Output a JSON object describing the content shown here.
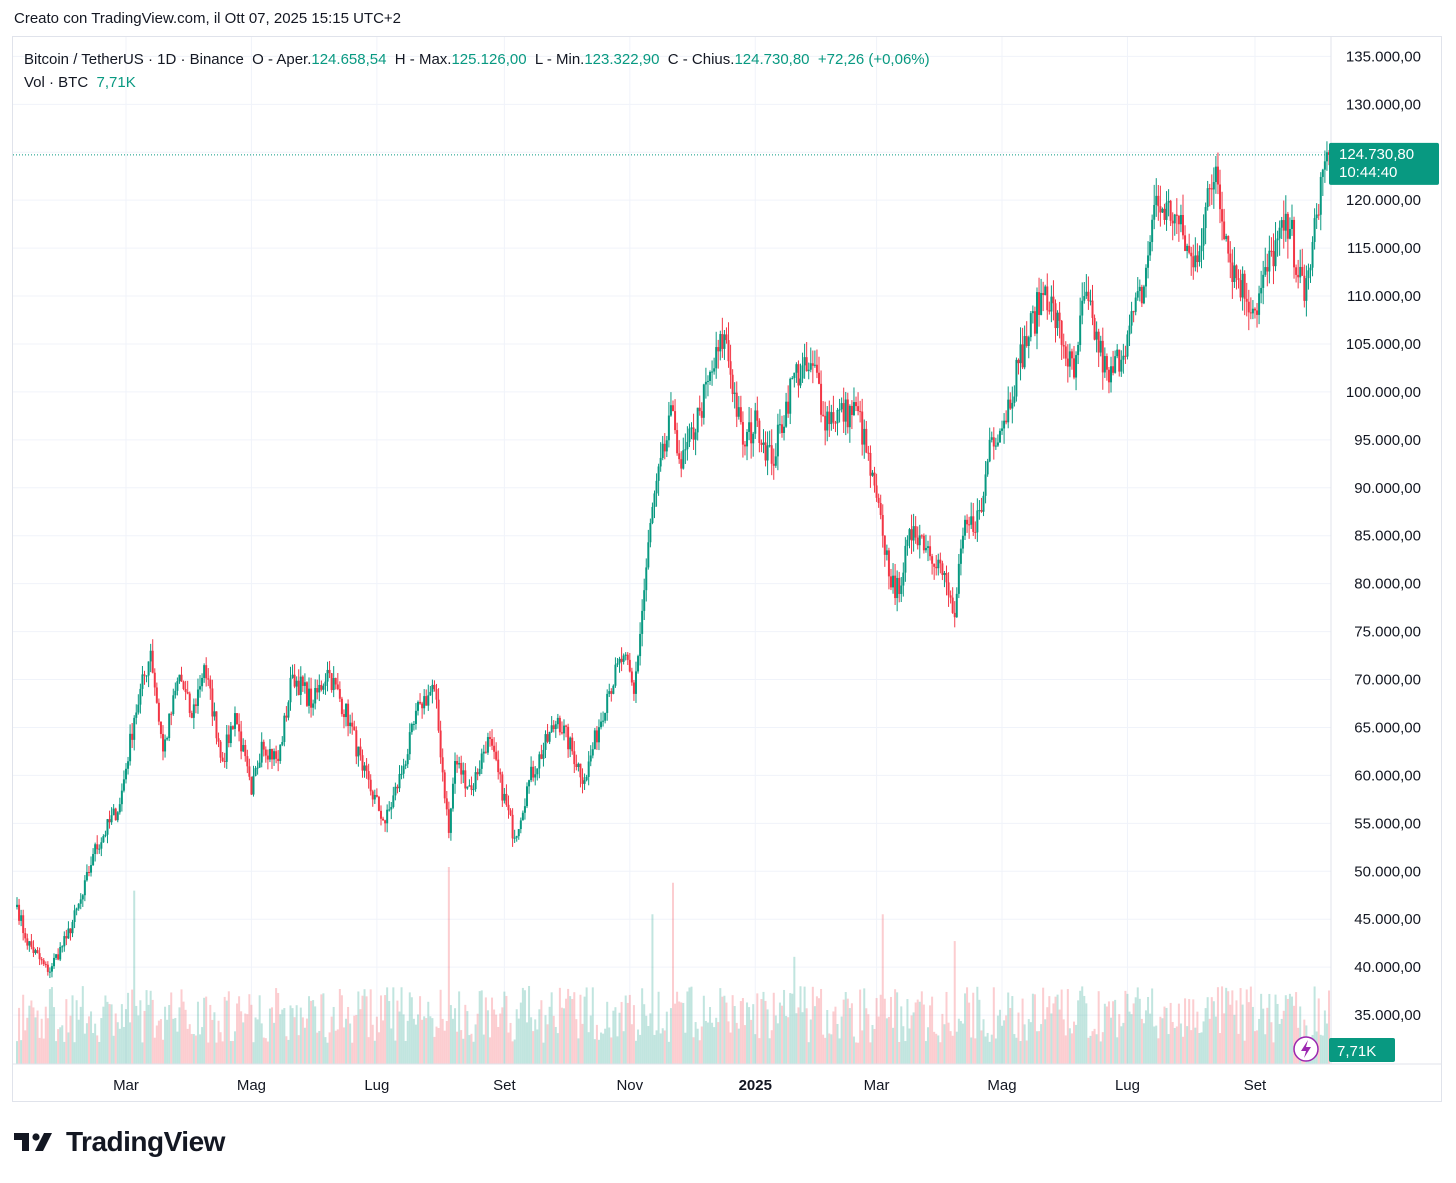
{
  "header": {
    "created_text": "Creato con TradingView.com, il Ott 07, 2025 15:15 UTC+2"
  },
  "legend": {
    "symbol": "Bitcoin / TetherUS · 1D · Binance",
    "open_label": "O - Aper.",
    "open_value": "124.658,54",
    "high_label": "H - Max.",
    "high_value": "125.126,00",
    "low_label": "L - Min.",
    "low_value": "123.322,90",
    "close_label": "C - Chius.",
    "close_value": "124.730,80",
    "change": "+72,26 (+0,06%)",
    "vol_label": "Vol · BTC",
    "vol_value": "7,71K"
  },
  "price_badge": {
    "price": "124.730,80",
    "countdown": "10:44:40"
  },
  "volume_badge": "7,71K",
  "footer": {
    "brand": "TradingView"
  },
  "colors": {
    "up": "#089981",
    "down": "#f23645",
    "grid": "#f0f3fa",
    "axis_text": "#131722",
    "badge": "#089981"
  },
  "chart_data": {
    "type": "candlestick",
    "interval": "1D",
    "ylim": [
      30000,
      136500
    ],
    "y_ticks": [
      35000,
      40000,
      45000,
      50000,
      55000,
      60000,
      65000,
      70000,
      75000,
      80000,
      85000,
      90000,
      95000,
      100000,
      105000,
      110000,
      115000,
      120000,
      125000,
      130000,
      135000
    ],
    "y_tick_labels": [
      "35.000,00",
      "40.000,00",
      "45.000,00",
      "50.000,00",
      "55.000,00",
      "60.000,00",
      "65.000,00",
      "70.000,00",
      "75.000,00",
      "80.000,00",
      "85.000,00",
      "90.000,00",
      "95.000,00",
      "100.000,00",
      "105.000,00",
      "110.000,00",
      "115.000,00",
      "120.000,00",
      "125.000,00",
      "130.000,00",
      "135.000,00"
    ],
    "x_tick_labels": [
      {
        "date": "2024-03-01",
        "label": "Mar"
      },
      {
        "date": "2024-05-01",
        "label": "Mag"
      },
      {
        "date": "2024-07-01",
        "label": "Lug"
      },
      {
        "date": "2024-09-01",
        "label": "Set"
      },
      {
        "date": "2024-11-01",
        "label": "Nov"
      },
      {
        "date": "2025-01-01",
        "label": "2025",
        "bold": true
      },
      {
        "date": "2025-03-01",
        "label": "Mar"
      },
      {
        "date": "2025-05-01",
        "label": "Mag"
      },
      {
        "date": "2025-07-01",
        "label": "Lug"
      },
      {
        "date": "2025-09-01",
        "label": "Set"
      }
    ],
    "x_range": [
      "2024-01-08",
      "2025-10-07"
    ],
    "last_price": 124730.8,
    "close_anchors": [
      [
        "2024-01-08",
        46500
      ],
      [
        "2024-01-12",
        43000
      ],
      [
        "2024-01-23",
        39500
      ],
      [
        "2024-02-01",
        43000
      ],
      [
        "2024-02-09",
        47500
      ],
      [
        "2024-02-14",
        51800
      ],
      [
        "2024-02-27",
        57000
      ],
      [
        "2024-03-05",
        66000
      ],
      [
        "2024-03-13",
        73000
      ],
      [
        "2024-03-19",
        62500
      ],
      [
        "2024-03-27",
        70500
      ],
      [
        "2024-04-02",
        66000
      ],
      [
        "2024-04-08",
        71500
      ],
      [
        "2024-04-17",
        61500
      ],
      [
        "2024-04-23",
        66500
      ],
      [
        "2024-05-01",
        58000
      ],
      [
        "2024-05-06",
        63500
      ],
      [
        "2024-05-14",
        61500
      ],
      [
        "2024-05-21",
        70500
      ],
      [
        "2024-05-31",
        67500
      ],
      [
        "2024-06-07",
        71000
      ],
      [
        "2024-06-18",
        65500
      ],
      [
        "2024-06-24",
        60500
      ],
      [
        "2024-07-05",
        55000
      ],
      [
        "2024-07-14",
        61000
      ],
      [
        "2024-07-22",
        67500
      ],
      [
        "2024-07-29",
        69000
      ],
      [
        "2024-08-05",
        54000
      ],
      [
        "2024-08-08",
        61500
      ],
      [
        "2024-08-16",
        58500
      ],
      [
        "2024-08-24",
        64000
      ],
      [
        "2024-09-06",
        53500
      ],
      [
        "2024-09-13",
        59500
      ],
      [
        "2024-09-27",
        66000
      ],
      [
        "2024-10-10",
        59500
      ],
      [
        "2024-10-21",
        68500
      ],
      [
        "2024-10-29",
        72500
      ],
      [
        "2024-11-03",
        68500
      ],
      [
        "2024-11-12",
        88000
      ],
      [
        "2024-11-22",
        98000
      ],
      [
        "2024-11-26",
        92000
      ],
      [
        "2024-12-05",
        98000
      ],
      [
        "2024-12-17",
        106000
      ],
      [
        "2024-12-26",
        94500
      ],
      [
        "2025-01-02",
        97000
      ],
      [
        "2025-01-09",
        92500
      ],
      [
        "2025-01-20",
        102000
      ],
      [
        "2025-01-31",
        102000
      ],
      [
        "2025-02-03",
        97500
      ],
      [
        "2025-02-20",
        98000
      ],
      [
        "2025-03-04",
        85000
      ],
      [
        "2025-03-10",
        78500
      ],
      [
        "2025-03-19",
        86000
      ],
      [
        "2025-03-31",
        82500
      ],
      [
        "2025-04-08",
        76500
      ],
      [
        "2025-04-12",
        85000
      ],
      [
        "2025-04-21",
        87500
      ],
      [
        "2025-04-25",
        95000
      ],
      [
        "2025-05-02",
        97000
      ],
      [
        "2025-05-09",
        103000
      ],
      [
        "2025-05-22",
        111000
      ],
      [
        "2025-06-05",
        101500
      ],
      [
        "2025-06-10",
        110000
      ],
      [
        "2025-06-22",
        101000
      ],
      [
        "2025-07-01",
        106000
      ],
      [
        "2025-07-09",
        111000
      ],
      [
        "2025-07-14",
        119500
      ],
      [
        "2025-07-24",
        118500
      ],
      [
        "2025-08-02",
        113000
      ],
      [
        "2025-08-13",
        123500
      ],
      [
        "2025-08-20",
        113500
      ],
      [
        "2025-09-01",
        108500
      ],
      [
        "2025-09-12",
        116000
      ],
      [
        "2025-09-18",
        117000
      ],
      [
        "2025-09-25",
        109500
      ],
      [
        "2025-10-01",
        118500
      ],
      [
        "2025-10-06",
        125000
      ],
      [
        "2025-10-07",
        124730
      ]
    ],
    "volume": {
      "scale_max": 125000,
      "typical": 30000,
      "spikes": [
        [
          "2024-03-05",
          110000
        ],
        [
          "2024-08-05",
          125000
        ],
        [
          "2024-11-12",
          95000
        ],
        [
          "2024-11-22",
          115000
        ],
        [
          "2025-01-20",
          68000
        ],
        [
          "2025-03-04",
          95000
        ],
        [
          "2025-04-08",
          78000
        ]
      ]
    }
  }
}
